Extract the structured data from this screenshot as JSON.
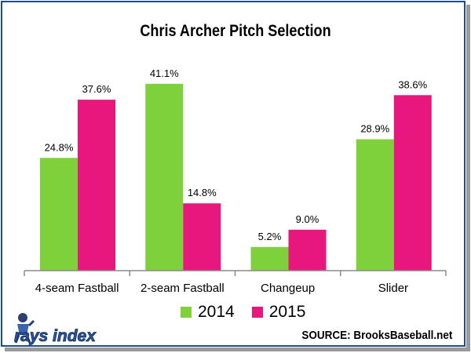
{
  "chart_data": {
    "type": "bar",
    "title": "Chris Archer Pitch Selection",
    "categories": [
      "4-seam Fastball",
      "2-seam Fastball",
      "Changeup",
      "Slider"
    ],
    "series": [
      {
        "name": "2014",
        "color": "#7fd13b",
        "values": [
          24.8,
          41.1,
          5.2,
          28.9
        ],
        "labels": [
          "24.8%",
          "41.1%",
          "5.2%",
          "28.9%"
        ]
      },
      {
        "name": "2015",
        "color": "#e8177d",
        "values": [
          37.6,
          14.8,
          9.0,
          38.6
        ],
        "labels": [
          "37.6%",
          "14.8%",
          "9.0%",
          "38.6%"
        ]
      }
    ],
    "ylim": [
      0,
      44
    ],
    "grid": false,
    "legend_position": "bottom"
  },
  "source_text": "SOURCE: BrooksBaseball.net",
  "logo": {
    "text": "rays index",
    "icon": "rays-index-mascot-logo"
  },
  "colors": {
    "frame": "#1f4e8c",
    "axis": "#8a8a8a"
  }
}
